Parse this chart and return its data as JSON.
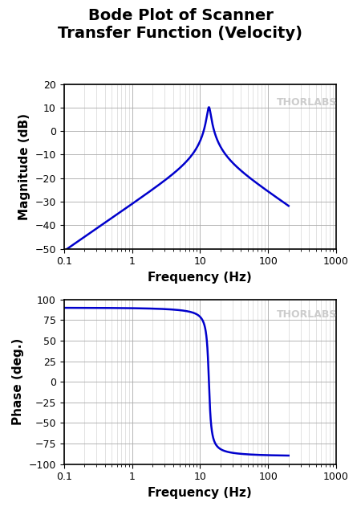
{
  "title_line1": "Bode Plot of Scanner",
  "title_line2": "Transfer Function (Velocity)",
  "title_fontsize": 14,
  "title_fontweight": "bold",
  "xlabel": "Frequency (Hz)",
  "ylabel_mag": "Magnitude (dB)",
  "ylabel_phase": "Phase (deg.)",
  "freq_min": 0.1,
  "freq_max": 1000,
  "freq_data_max": 200,
  "mag_ylim": [
    -50,
    20
  ],
  "mag_yticks": [
    -50,
    -40,
    -30,
    -20,
    -10,
    0,
    10,
    20
  ],
  "phase_ylim": [
    -100,
    100
  ],
  "phase_yticks": [
    -100,
    -75,
    -50,
    -25,
    0,
    25,
    50,
    75,
    100
  ],
  "line_color": "#0000CC",
  "line_width": 1.8,
  "grid_major_color": "#AAAAAA",
  "grid_minor_color": "#CCCCCC",
  "grid_major_lw": 0.6,
  "grid_minor_lw": 0.4,
  "watermark_text": "THORLABS",
  "watermark_color": "#CCCCCC",
  "watermark_fontsize": 9,
  "resonance_freq": 13.5,
  "resonance_q": 8.5,
  "ref_freq": 0.2,
  "ref_mag_db": -45,
  "background_color": "#FFFFFF",
  "label_fontsize": 11,
  "tick_fontsize": 9,
  "axes_linewidth": 1.2
}
